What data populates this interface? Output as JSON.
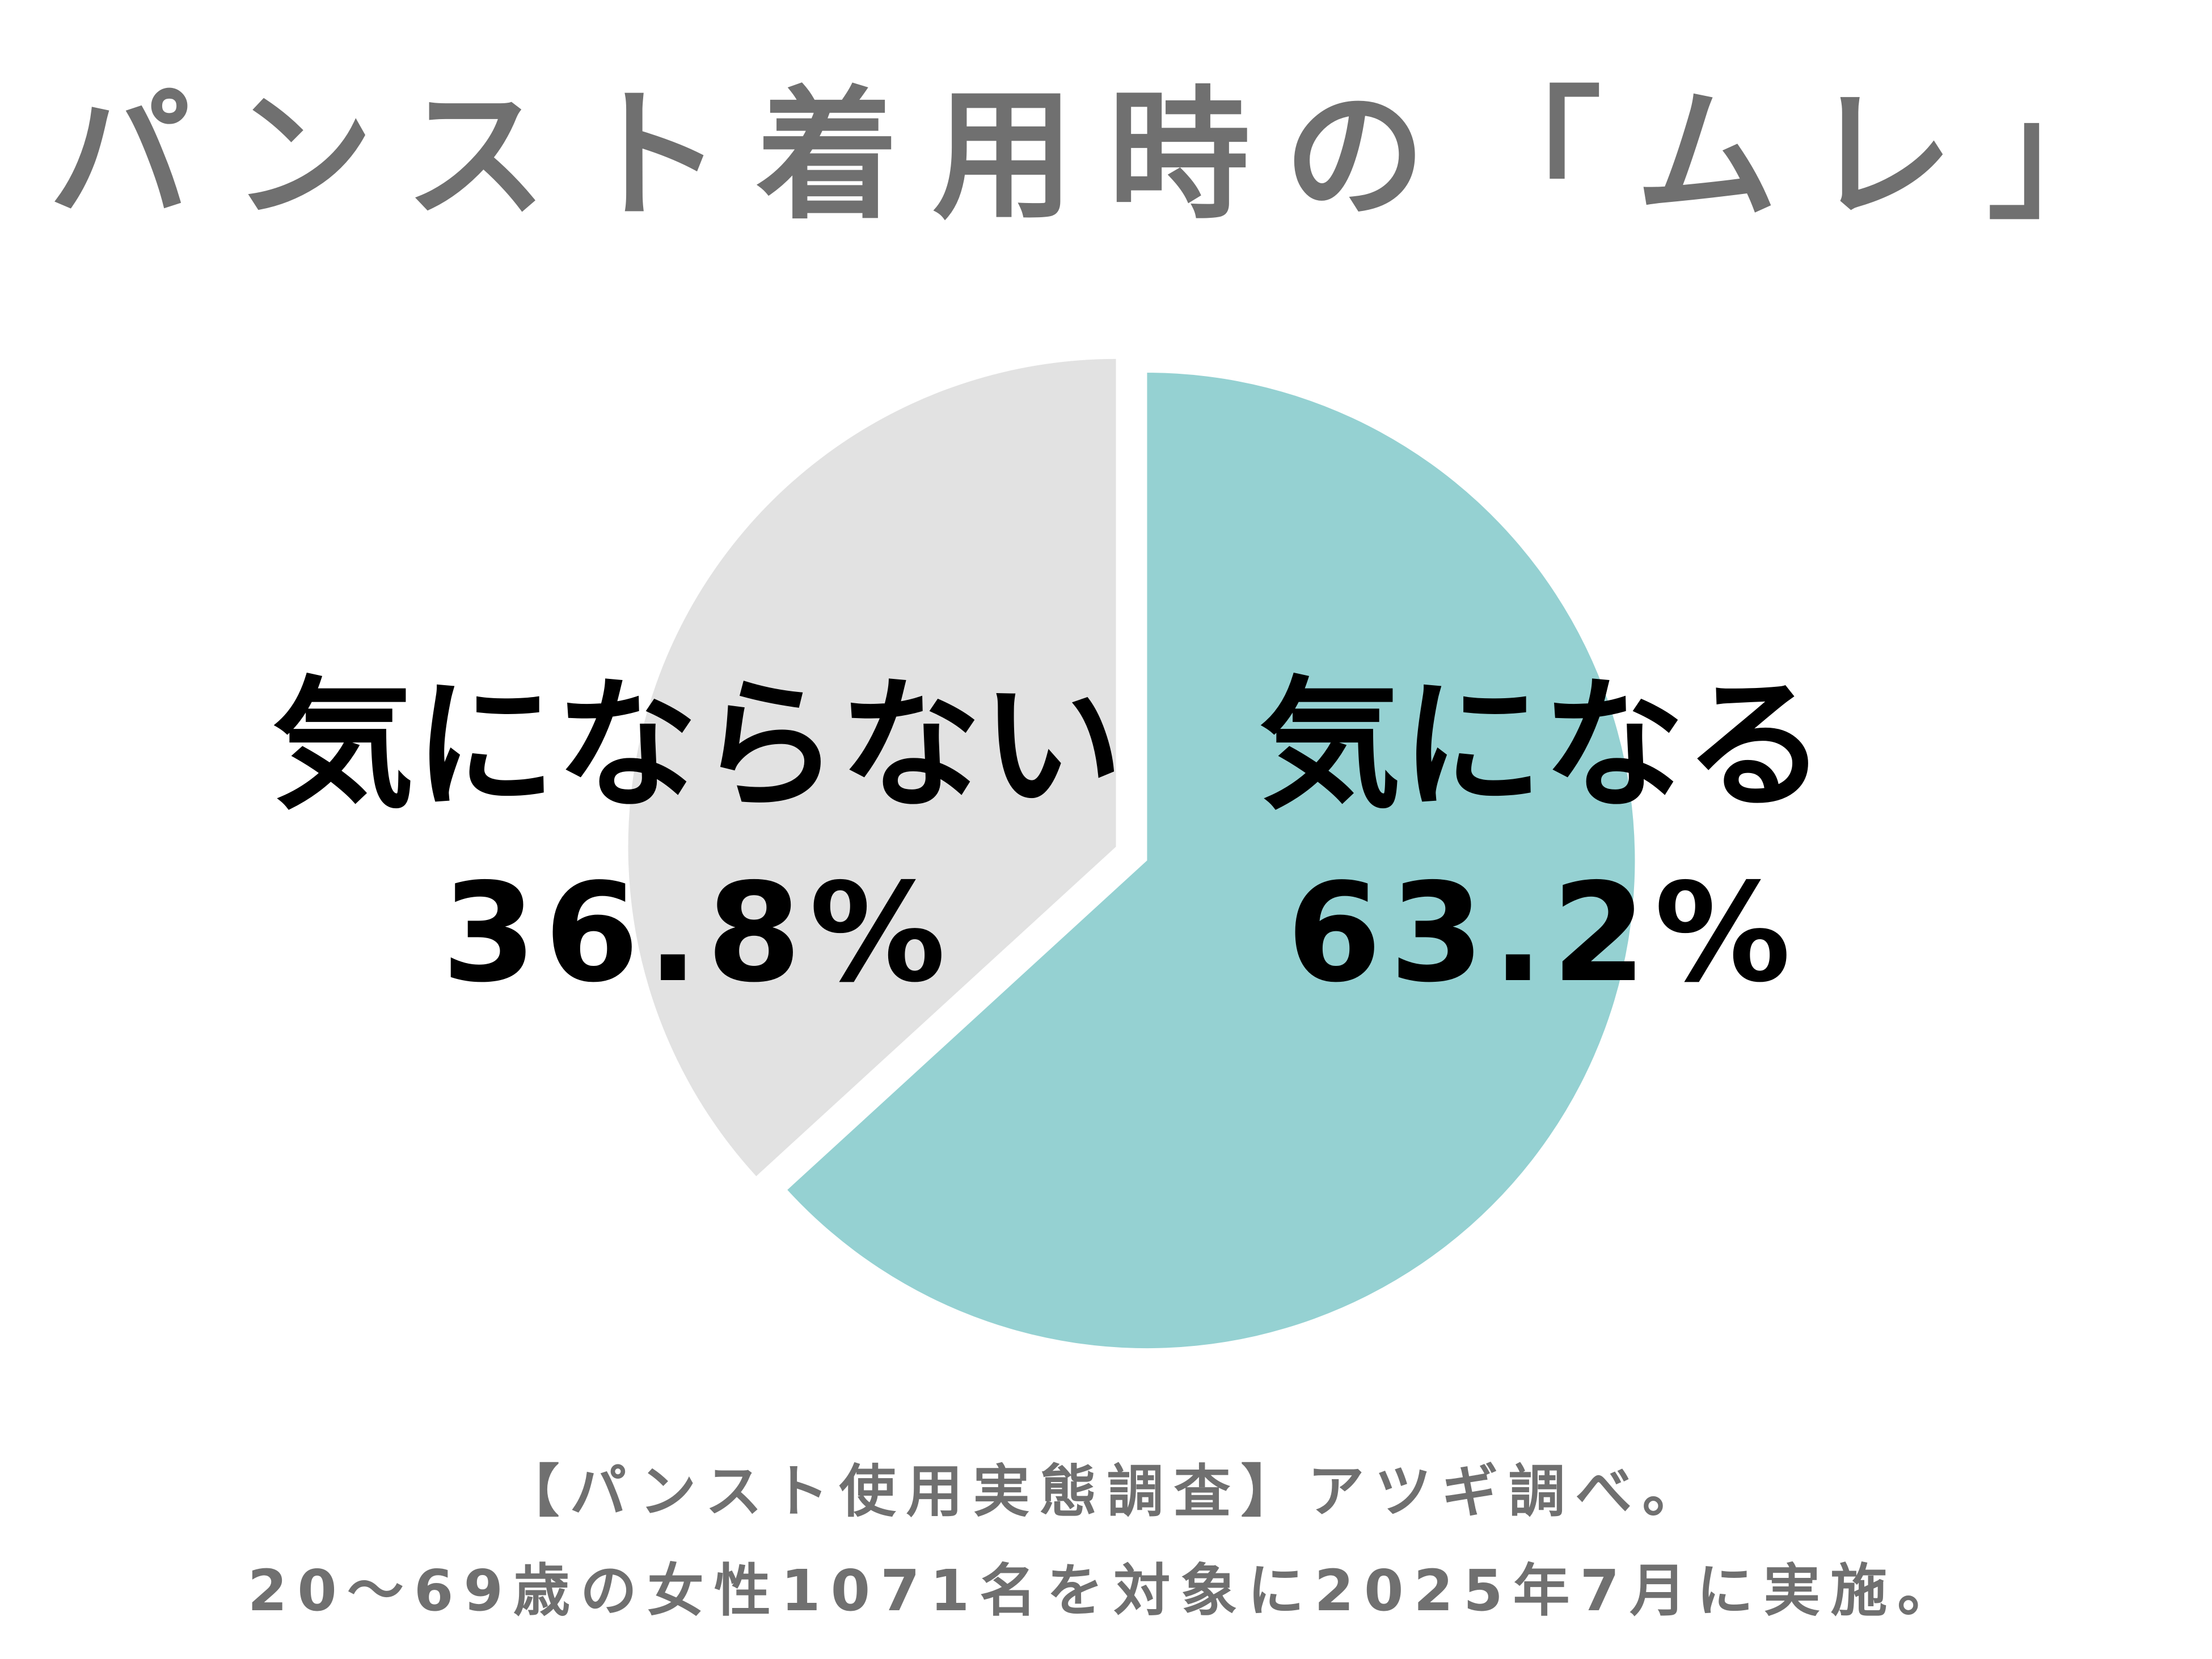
{
  "title": "パンスト着用時の「ムレ」",
  "chart_data": {
    "type": "pie",
    "title": "パンスト着用時の「ムレ」",
    "slices": [
      {
        "label": "気になる",
        "value": 63.2,
        "display": "63.2%",
        "color": "#95d1d2"
      },
      {
        "label": "気にならない",
        "value": 36.8,
        "display": "36.8%",
        "color": "#e2e2e2"
      }
    ]
  },
  "footnote": {
    "line1": "【パンスト使用実態調査】アツギ調べ。",
    "line2": "20～69歳の女性1071名を対象に2025年7月に実施。"
  }
}
